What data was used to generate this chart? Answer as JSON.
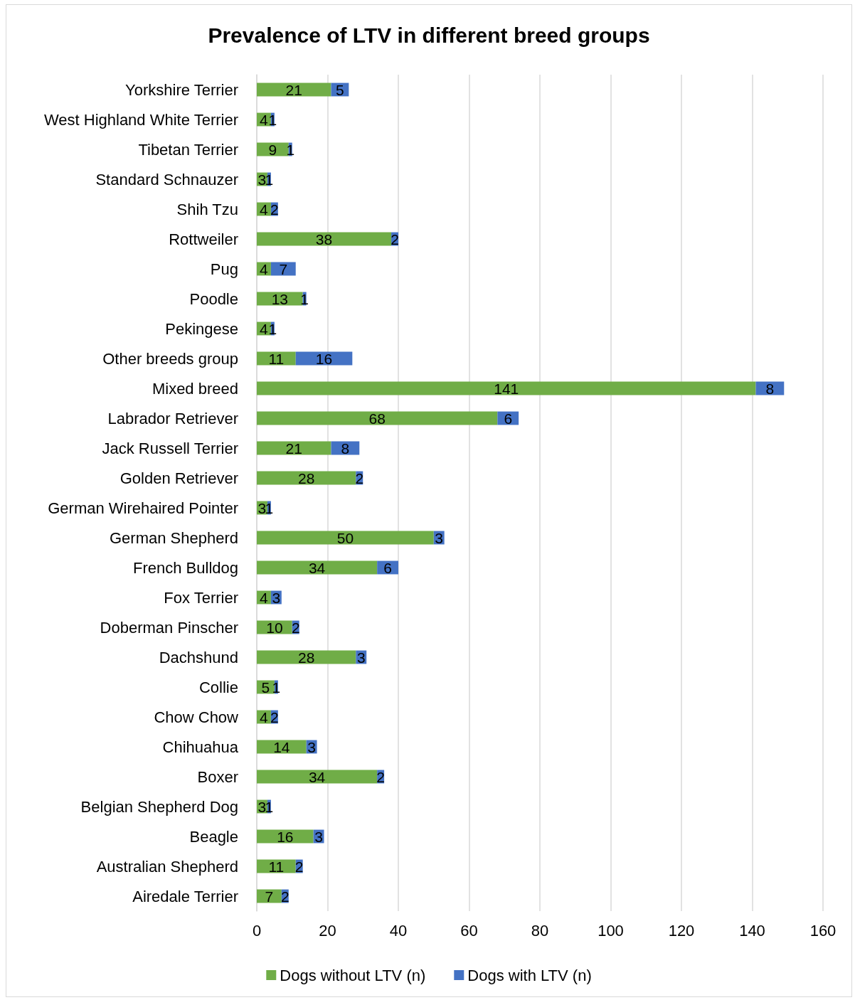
{
  "chart_data": {
    "type": "bar",
    "orientation": "horizontal",
    "stacked": true,
    "title": "Prevalence of LTV in different breed groups",
    "categories": [
      "Yorkshire Terrier",
      "West Highland White Terrier",
      "Tibetan Terrier",
      "Standard Schnauzer",
      "Shih Tzu",
      "Rottweiler",
      "Pug",
      "Poodle",
      "Pekingese",
      "Other breeds group",
      "Mixed breed",
      "Labrador Retriever",
      "Jack Russell Terrier",
      "Golden Retriever",
      "German Wirehaired Pointer",
      "German Shepherd",
      "French Bulldog",
      "Fox Terrier",
      "Doberman Pinscher",
      "Dachshund",
      "Collie",
      "Chow Chow",
      "Chihuahua",
      "Boxer",
      "Belgian Shepherd Dog",
      "Beagle",
      "Australian Shepherd",
      "Airedale Terrier"
    ],
    "series": [
      {
        "name": "Dogs without LTV (n)",
        "color": "#70ad47",
        "values": [
          21,
          4,
          9,
          3,
          4,
          38,
          4,
          13,
          4,
          11,
          141,
          68,
          21,
          28,
          3,
          50,
          34,
          4,
          10,
          28,
          5,
          4,
          14,
          34,
          3,
          16,
          11,
          7
        ]
      },
      {
        "name": "Dogs with LTV (n)",
        "color": "#4472c4",
        "values": [
          5,
          1,
          1,
          1,
          2,
          2,
          7,
          1,
          1,
          16,
          8,
          6,
          8,
          2,
          1,
          3,
          6,
          3,
          2,
          3,
          1,
          2,
          3,
          2,
          1,
          3,
          2,
          2
        ]
      }
    ],
    "xlim": [
      0,
      160
    ],
    "xticks": [
      0,
      20,
      40,
      60,
      80,
      100,
      120,
      140,
      160
    ],
    "grid": "x",
    "legend": "bottom",
    "data_labels": true
  }
}
